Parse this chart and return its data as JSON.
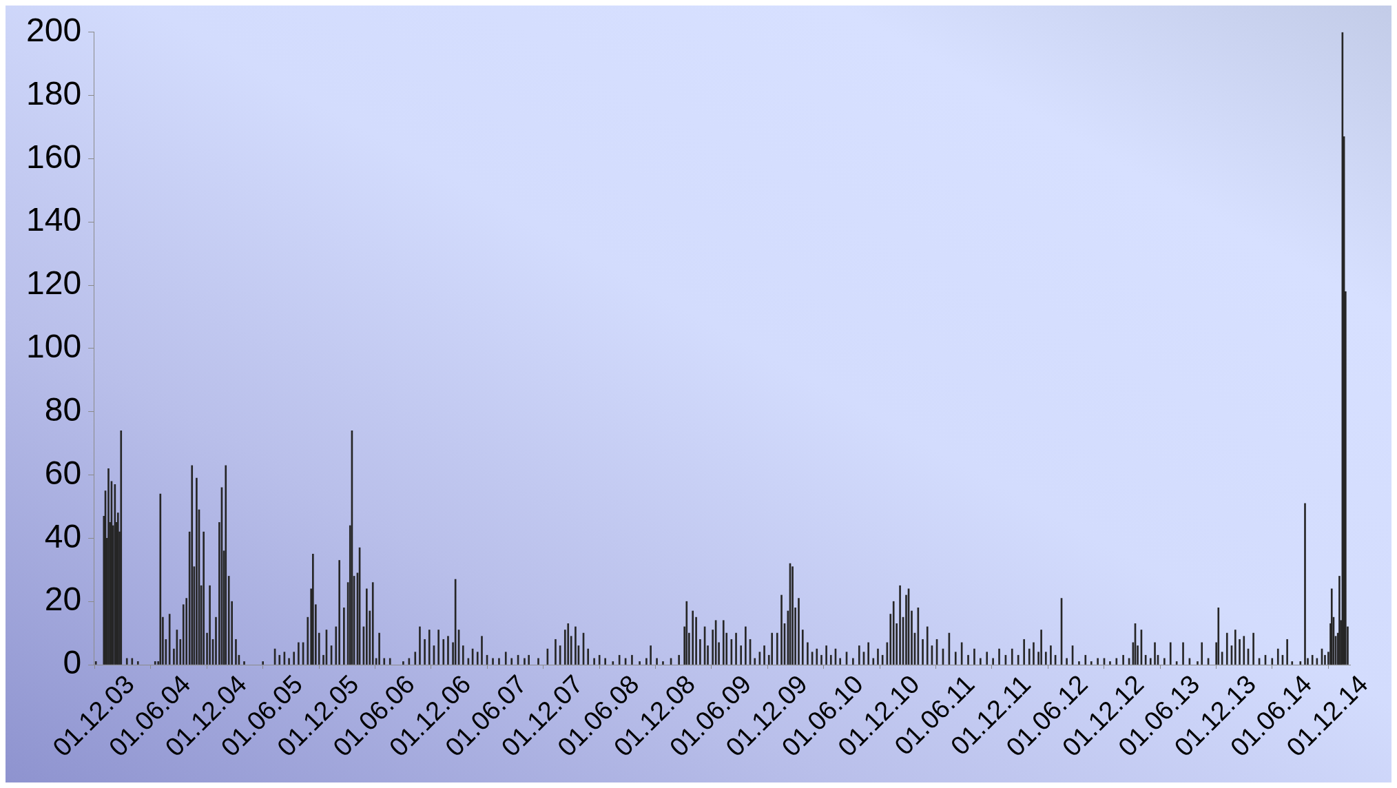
{
  "chart_data": {
    "type": "bar",
    "color": "#262626",
    "legend": false,
    "grid": false,
    "xlim": [
      "2003-11-28",
      "2015-02-10"
    ],
    "xticks": [
      {
        "value": "2003-12-01",
        "label": "01.12.03"
      },
      {
        "value": "2004-06-01",
        "label": "01.06.04"
      },
      {
        "value": "2004-12-01",
        "label": "01.12.04"
      },
      {
        "value": "2005-06-01",
        "label": "01.06.05"
      },
      {
        "value": "2005-12-01",
        "label": "01.12.05"
      },
      {
        "value": "2006-06-01",
        "label": "01.06.06"
      },
      {
        "value": "2006-12-01",
        "label": "01.12.06"
      },
      {
        "value": "2007-06-01",
        "label": "01.06.07"
      },
      {
        "value": "2007-12-01",
        "label": "01.12.07"
      },
      {
        "value": "2008-06-01",
        "label": "01.06.08"
      },
      {
        "value": "2008-12-01",
        "label": "01.12.08"
      },
      {
        "value": "2009-06-01",
        "label": "01.06.09"
      },
      {
        "value": "2009-12-01",
        "label": "01.12.09"
      },
      {
        "value": "2010-06-01",
        "label": "01.06.10"
      },
      {
        "value": "2010-12-01",
        "label": "01.12.10"
      },
      {
        "value": "2011-06-01",
        "label": "01.06.11"
      },
      {
        "value": "2011-12-01",
        "label": "01.12.11"
      },
      {
        "value": "2012-06-01",
        "label": "01.06.12"
      },
      {
        "value": "2012-12-01",
        "label": "01.12.12"
      },
      {
        "value": "2013-06-01",
        "label": "01.06.13"
      },
      {
        "value": "2013-12-01",
        "label": "01.12.13"
      },
      {
        "value": "2014-06-01",
        "label": "01.06.14"
      },
      {
        "value": "2014-12-01",
        "label": "01.12.14"
      }
    ],
    "ylim": [
      0,
      200
    ],
    "yticks": [
      0,
      20,
      40,
      60,
      80,
      100,
      120,
      140,
      160,
      180,
      200
    ],
    "x": [
      "2003-12-05",
      "2003-12-31",
      "2004-01-05",
      "2004-01-10",
      "2004-01-15",
      "2004-01-20",
      "2004-01-25",
      "2004-01-30",
      "2004-02-05",
      "2004-02-10",
      "2004-02-15",
      "2004-02-20",
      "2004-02-25",
      "2004-03-15",
      "2004-04-01",
      "2004-04-20",
      "2004-06-15",
      "2004-06-25",
      "2004-07-02",
      "2004-07-10",
      "2004-07-20",
      "2004-08-01",
      "2004-08-15",
      "2004-08-25",
      "2004-09-05",
      "2004-09-15",
      "2004-09-25",
      "2004-10-05",
      "2004-10-13",
      "2004-10-20",
      "2004-10-28",
      "2004-11-05",
      "2004-11-12",
      "2004-11-20",
      "2004-12-01",
      "2004-12-10",
      "2004-12-20",
      "2004-12-30",
      "2005-01-10",
      "2005-01-18",
      "2005-01-25",
      "2005-01-31",
      "2005-02-10",
      "2005-02-20",
      "2005-03-05",
      "2005-03-15",
      "2005-04-01",
      "2005-06-01",
      "2005-07-10",
      "2005-07-25",
      "2005-08-10",
      "2005-08-25",
      "2005-09-10",
      "2005-09-25",
      "2005-10-10",
      "2005-10-25",
      "2005-11-05",
      "2005-11-11",
      "2005-11-20",
      "2005-12-01",
      "2005-12-15",
      "2005-12-25",
      "2006-01-10",
      "2006-01-25",
      "2006-02-05",
      "2006-02-20",
      "2006-03-05",
      "2006-03-12",
      "2006-03-18",
      "2006-03-25",
      "2006-04-05",
      "2006-04-12",
      "2006-04-25",
      "2006-05-05",
      "2006-05-15",
      "2006-05-25",
      "2006-06-05",
      "2006-06-15",
      "2006-07-01",
      "2006-07-20",
      "2006-09-01",
      "2006-09-20",
      "2006-10-10",
      "2006-10-25",
      "2006-11-10",
      "2006-11-25",
      "2006-12-10",
      "2006-12-25",
      "2007-01-10",
      "2007-01-25",
      "2007-02-10",
      "2007-02-18",
      "2007-03-01",
      "2007-03-15",
      "2007-04-01",
      "2007-04-15",
      "2007-05-01",
      "2007-05-15",
      "2007-06-01",
      "2007-06-20",
      "2007-07-10",
      "2007-08-01",
      "2007-08-20",
      "2007-09-10",
      "2007-10-01",
      "2007-10-15",
      "2007-11-15",
      "2007-12-15",
      "2008-01-10",
      "2008-01-25",
      "2008-02-10",
      "2008-02-20",
      "2008-03-01",
      "2008-03-15",
      "2008-03-25",
      "2008-04-10",
      "2008-04-25",
      "2008-05-15",
      "2008-06-01",
      "2008-06-20",
      "2008-07-15",
      "2008-08-05",
      "2008-08-25",
      "2008-09-15",
      "2008-10-10",
      "2008-11-01",
      "2008-11-15",
      "2008-12-05",
      "2008-12-25",
      "2009-01-20",
      "2009-02-15",
      "2009-03-05",
      "2009-03-12",
      "2009-03-20",
      "2009-04-01",
      "2009-04-12",
      "2009-04-25",
      "2009-05-10",
      "2009-05-20",
      "2009-06-05",
      "2009-06-15",
      "2009-06-25",
      "2009-07-10",
      "2009-07-20",
      "2009-08-05",
      "2009-08-20",
      "2009-09-05",
      "2009-09-20",
      "2009-10-05",
      "2009-10-20",
      "2009-11-05",
      "2009-11-20",
      "2009-12-05",
      "2009-12-15",
      "2010-01-01",
      "2010-01-15",
      "2010-01-25",
      "2010-02-05",
      "2010-02-12",
      "2010-02-20",
      "2010-03-01",
      "2010-03-12",
      "2010-03-25",
      "2010-04-10",
      "2010-04-25",
      "2010-05-10",
      "2010-05-25",
      "2010-06-10",
      "2010-06-25",
      "2010-07-10",
      "2010-07-25",
      "2010-08-15",
      "2010-09-05",
      "2010-09-25",
      "2010-10-10",
      "2010-10-25",
      "2010-11-10",
      "2010-11-25",
      "2010-12-10",
      "2010-12-25",
      "2011-01-05",
      "2011-01-15",
      "2011-01-25",
      "2011-02-05",
      "2011-02-15",
      "2011-02-25",
      "2011-03-05",
      "2011-03-15",
      "2011-03-25",
      "2011-04-05",
      "2011-04-20",
      "2011-05-05",
      "2011-05-20",
      "2011-06-05",
      "2011-06-25",
      "2011-07-15",
      "2011-08-05",
      "2011-08-25",
      "2011-09-15",
      "2011-10-05",
      "2011-10-25",
      "2011-11-15",
      "2011-12-05",
      "2011-12-25",
      "2012-01-15",
      "2012-02-05",
      "2012-02-25",
      "2012-03-15",
      "2012-04-01",
      "2012-04-15",
      "2012-05-01",
      "2012-05-10",
      "2012-05-25",
      "2012-06-10",
      "2012-06-25",
      "2012-07-15",
      "2012-08-01",
      "2012-08-20",
      "2012-09-10",
      "2012-10-01",
      "2012-10-20",
      "2012-11-10",
      "2012-12-01",
      "2012-12-20",
      "2013-01-10",
      "2013-02-01",
      "2013-02-20",
      "2013-03-05",
      "2013-03-12",
      "2013-03-20",
      "2013-04-01",
      "2013-04-15",
      "2013-05-01",
      "2013-05-15",
      "2013-05-25",
      "2013-06-15",
      "2013-07-05",
      "2013-07-25",
      "2013-08-15",
      "2013-09-05",
      "2013-10-01",
      "2013-10-15",
      "2013-11-05",
      "2013-12-01",
      "2013-12-08",
      "2013-12-20",
      "2014-01-05",
      "2014-01-20",
      "2014-02-01",
      "2014-02-15",
      "2014-03-01",
      "2014-03-15",
      "2014-04-01",
      "2014-04-20",
      "2014-05-10",
      "2014-06-01",
      "2014-06-20",
      "2014-07-05",
      "2014-07-20",
      "2014-08-05",
      "2014-09-01",
      "2014-09-16",
      "2014-09-25",
      "2014-10-10",
      "2014-10-25",
      "2014-11-10",
      "2014-11-20",
      "2014-12-01",
      "2014-12-08",
      "2014-12-12",
      "2014-12-18",
      "2014-12-25",
      "2015-01-01",
      "2015-01-06",
      "2015-01-11",
      "2015-01-16",
      "2015-01-21",
      "2015-01-26",
      "2015-02-02"
    ],
    "values": [
      1,
      47,
      55,
      40,
      62,
      45,
      58,
      44,
      57,
      45,
      48,
      42,
      74,
      2,
      2,
      1,
      1,
      1,
      54,
      15,
      8,
      16,
      5,
      11,
      8,
      19,
      21,
      42,
      63,
      31,
      59,
      49,
      25,
      42,
      10,
      25,
      8,
      15,
      45,
      56,
      36,
      63,
      28,
      20,
      8,
      3,
      1,
      1,
      5,
      3,
      4,
      2,
      4,
      7,
      7,
      15,
      24,
      35,
      19,
      10,
      3,
      11,
      6,
      12,
      33,
      18,
      26,
      44,
      74,
      28,
      29,
      37,
      12,
      24,
      17,
      26,
      2,
      10,
      2,
      2,
      1,
      2,
      4,
      12,
      8,
      11,
      6,
      11,
      8,
      9,
      7,
      27,
      11,
      6,
      2,
      5,
      4,
      9,
      3,
      2,
      2,
      4,
      2,
      3,
      2,
      3,
      2,
      5,
      8,
      6,
      11,
      13,
      9,
      12,
      6,
      10,
      5,
      2,
      3,
      2,
      1,
      3,
      2,
      3,
      1,
      2,
      6,
      2,
      1,
      2,
      3,
      12,
      20,
      10,
      17,
      15,
      8,
      12,
      6,
      11,
      14,
      7,
      14,
      10,
      8,
      10,
      6,
      12,
      8,
      2,
      4,
      6,
      3,
      10,
      10,
      22,
      13,
      17,
      32,
      31,
      18,
      21,
      11,
      7,
      4,
      5,
      3,
      6,
      3,
      5,
      2,
      4,
      2,
      6,
      4,
      7,
      2,
      5,
      3,
      7,
      16,
      20,
      13,
      25,
      15,
      22,
      24,
      17,
      10,
      18,
      8,
      12,
      6,
      8,
      5,
      10,
      4,
      7,
      3,
      5,
      2,
      4,
      2,
      5,
      3,
      5,
      3,
      8,
      5,
      7,
      4,
      11,
      4,
      6,
      3,
      21,
      2,
      6,
      1,
      3,
      1,
      2,
      2,
      1,
      2,
      3,
      2,
      7,
      13,
      6,
      11,
      3,
      2,
      7,
      3,
      2,
      7,
      1,
      7,
      2,
      1,
      7,
      2,
      7,
      18,
      4,
      10,
      6,
      11,
      8,
      9,
      5,
      10,
      2,
      3,
      2,
      5,
      3,
      8,
      1,
      1,
      51,
      2,
      3,
      2,
      5,
      3,
      4,
      13,
      24,
      15,
      9,
      10,
      28,
      14,
      200,
      167,
      118,
      12
    ]
  }
}
